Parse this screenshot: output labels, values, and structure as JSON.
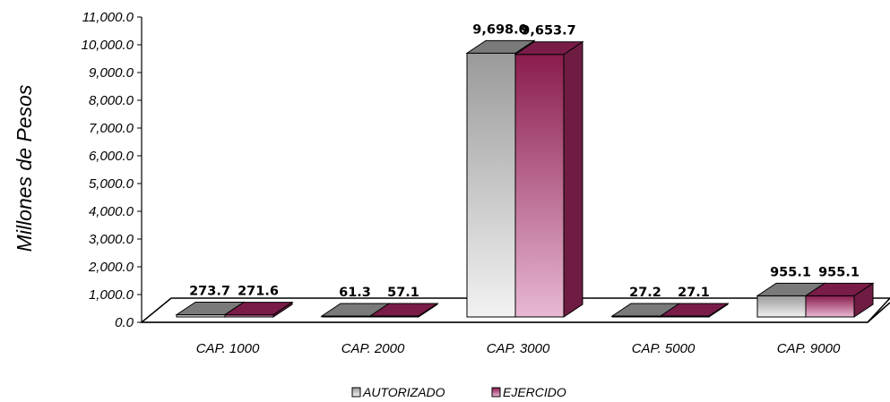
{
  "chart_data": {
    "type": "bar",
    "style": "3d-clustered",
    "ylabel": "Millones de Pesos",
    "ylim": [
      0,
      11000
    ],
    "ytick_step": 1000,
    "yticks": [
      "0.0",
      "1,000.0",
      "2,000.0",
      "3,000.0",
      "4,000.0",
      "5,000.0",
      "6,000.0",
      "7,000.0",
      "8,000.0",
      "9,000.0",
      "10,000.0",
      "11,000.0"
    ],
    "categories": [
      "CAP. 1000",
      "CAP. 2000",
      "CAP. 3000",
      "CAP. 5000",
      "CAP. 9000"
    ],
    "series": [
      {
        "name": "AUTORIZADO",
        "values": [
          273.7,
          61.3,
          9698.0,
          27.2,
          955.1
        ],
        "labels": [
          "273.7",
          "61.3",
          "9,698.0",
          "27.2",
          "955.1"
        ],
        "color_light": "#f2f2f2",
        "color_dark": "#9a9a9a",
        "color_top": "#7a7a7a",
        "color_side": "#6a6a6a"
      },
      {
        "name": "EJERCIDO",
        "values": [
          271.6,
          57.1,
          9653.7,
          27.1,
          955.1
        ],
        "labels": [
          "271.6",
          "57.1",
          "9,653.7",
          "27.1",
          "955.1"
        ],
        "color_light": "#e8b8d2",
        "color_dark": "#8a1c4c",
        "color_top": "#7a1c48",
        "color_side": "#6e1c42"
      }
    ],
    "legend_position": "bottom-center",
    "grid": false
  }
}
